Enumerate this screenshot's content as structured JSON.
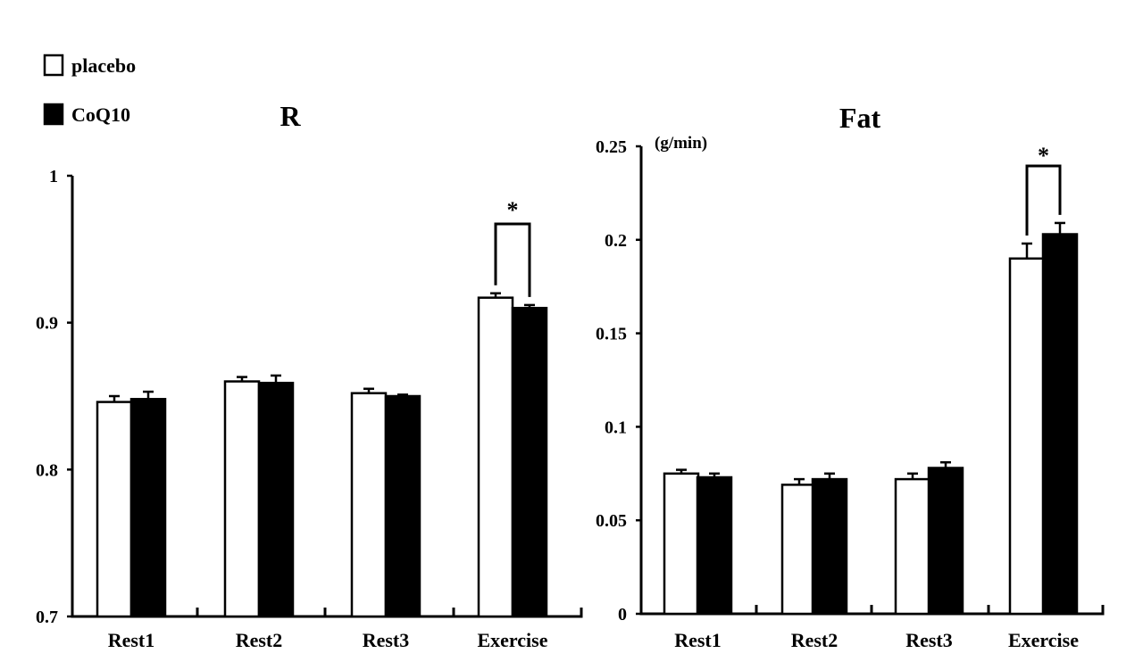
{
  "legend": {
    "items": [
      {
        "label": "placebo",
        "fill": "#ffffff"
      },
      {
        "label": "CoQ10",
        "fill": "#000000"
      }
    ]
  },
  "chart_data": [
    {
      "type": "bar",
      "title": "R",
      "ylabel": "",
      "xlabel": "",
      "categories": [
        "Rest1",
        "Rest2",
        "Rest3",
        "Exercise"
      ],
      "ylim": [
        0.7,
        1
      ],
      "yticks": [
        0.7,
        0.8,
        0.9,
        1
      ],
      "ytick_labels": [
        "0.7",
        "0.8",
        "0.9",
        "1"
      ],
      "series": [
        {
          "name": "placebo",
          "color": "#ffffff",
          "values": [
            0.846,
            0.86,
            0.852,
            0.917
          ],
          "errors": [
            0.004,
            0.003,
            0.003,
            0.003
          ]
        },
        {
          "name": "CoQ10",
          "color": "#000000",
          "values": [
            0.848,
            0.859,
            0.85,
            0.91
          ],
          "errors": [
            0.005,
            0.005,
            0.001,
            0.002
          ]
        }
      ],
      "annotations": [
        {
          "category": "Exercise",
          "text": "*"
        }
      ],
      "legend": "top-left",
      "grid": false
    },
    {
      "type": "bar",
      "title": "Fat",
      "ylabel": "(g/min)",
      "xlabel": "",
      "categories": [
        "Rest1",
        "Rest2",
        "Rest3",
        "Exercise"
      ],
      "ylim": [
        0,
        0.25
      ],
      "yticks": [
        0,
        0.05,
        0.1,
        0.15,
        0.2,
        0.25
      ],
      "ytick_labels": [
        "0",
        "0.05",
        "0.1",
        "0.15",
        "0.2",
        "0.25"
      ],
      "series": [
        {
          "name": "placebo",
          "color": "#ffffff",
          "values": [
            0.075,
            0.069,
            0.072,
            0.19
          ],
          "errors": [
            0.002,
            0.003,
            0.003,
            0.008
          ]
        },
        {
          "name": "CoQ10",
          "color": "#000000",
          "values": [
            0.073,
            0.072,
            0.078,
            0.203
          ],
          "errors": [
            0.002,
            0.003,
            0.003,
            0.006
          ]
        }
      ],
      "annotations": [
        {
          "category": "Exercise",
          "text": "*"
        }
      ],
      "legend": "none",
      "grid": false
    }
  ]
}
